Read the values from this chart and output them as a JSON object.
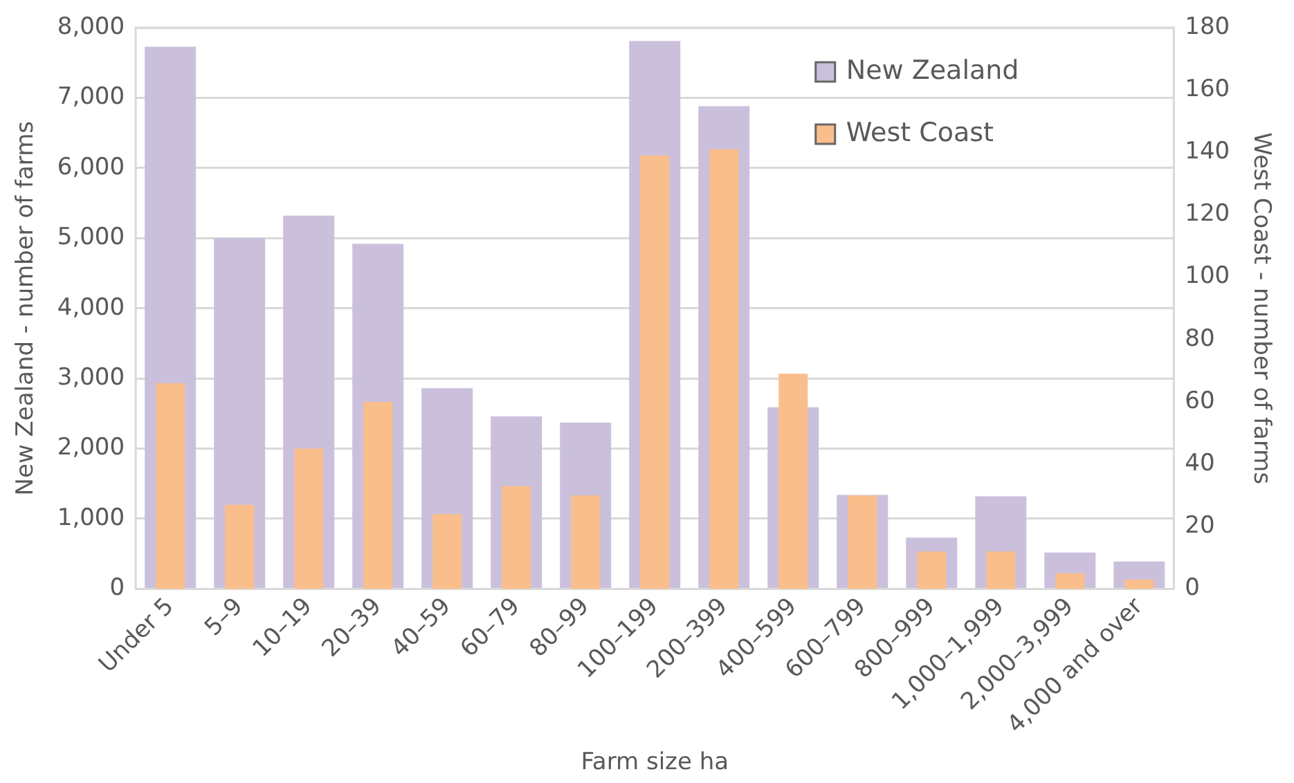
{
  "chart_data": {
    "type": "bar",
    "xlabel": "Farm size ha",
    "ylabel": "New Zealand - number of farms",
    "y2label": "West Coast - number of farms",
    "categories": [
      "Under 5",
      "5–9",
      "10–19",
      "20–39",
      "40–59",
      "60–79",
      "80–99",
      "100–199",
      "200–399",
      "400–599",
      "600–799",
      "800–999",
      "1,000–1,999",
      "2,000–3,999",
      "4,000 and over"
    ],
    "series": [
      {
        "name": "New Zealand",
        "color": "#cbc0dc",
        "values": [
          7730,
          5000,
          5320,
          4920,
          2860,
          2460,
          2370,
          7810,
          6880,
          2590,
          1340,
          730,
          1320,
          520,
          390
        ]
      },
      {
        "name": "West Coast",
        "color": "#f9be8c",
        "axis": "y2",
        "values": [
          66,
          27,
          45,
          60,
          24,
          33,
          30,
          139,
          141,
          69,
          30,
          12,
          12,
          5,
          3
        ]
      }
    ],
    "ylim": [
      0,
      8000
    ],
    "yticks": [
      {
        "value": 0,
        "label": "0"
      },
      {
        "value": 1000,
        "label": "1,000"
      },
      {
        "value": 2000,
        "label": "2,000"
      },
      {
        "value": 3000,
        "label": "3,000"
      },
      {
        "value": 4000,
        "label": "4,000"
      },
      {
        "value": 5000,
        "label": "5,000"
      },
      {
        "value": 6000,
        "label": "6,000"
      },
      {
        "value": 7000,
        "label": "7,000"
      },
      {
        "value": 8000,
        "label": "8,000"
      }
    ],
    "y2lim": [
      0,
      180
    ],
    "y2ticks": [
      0,
      20,
      40,
      60,
      80,
      100,
      120,
      140,
      160,
      180
    ],
    "grid": "y",
    "legend": "top right"
  }
}
